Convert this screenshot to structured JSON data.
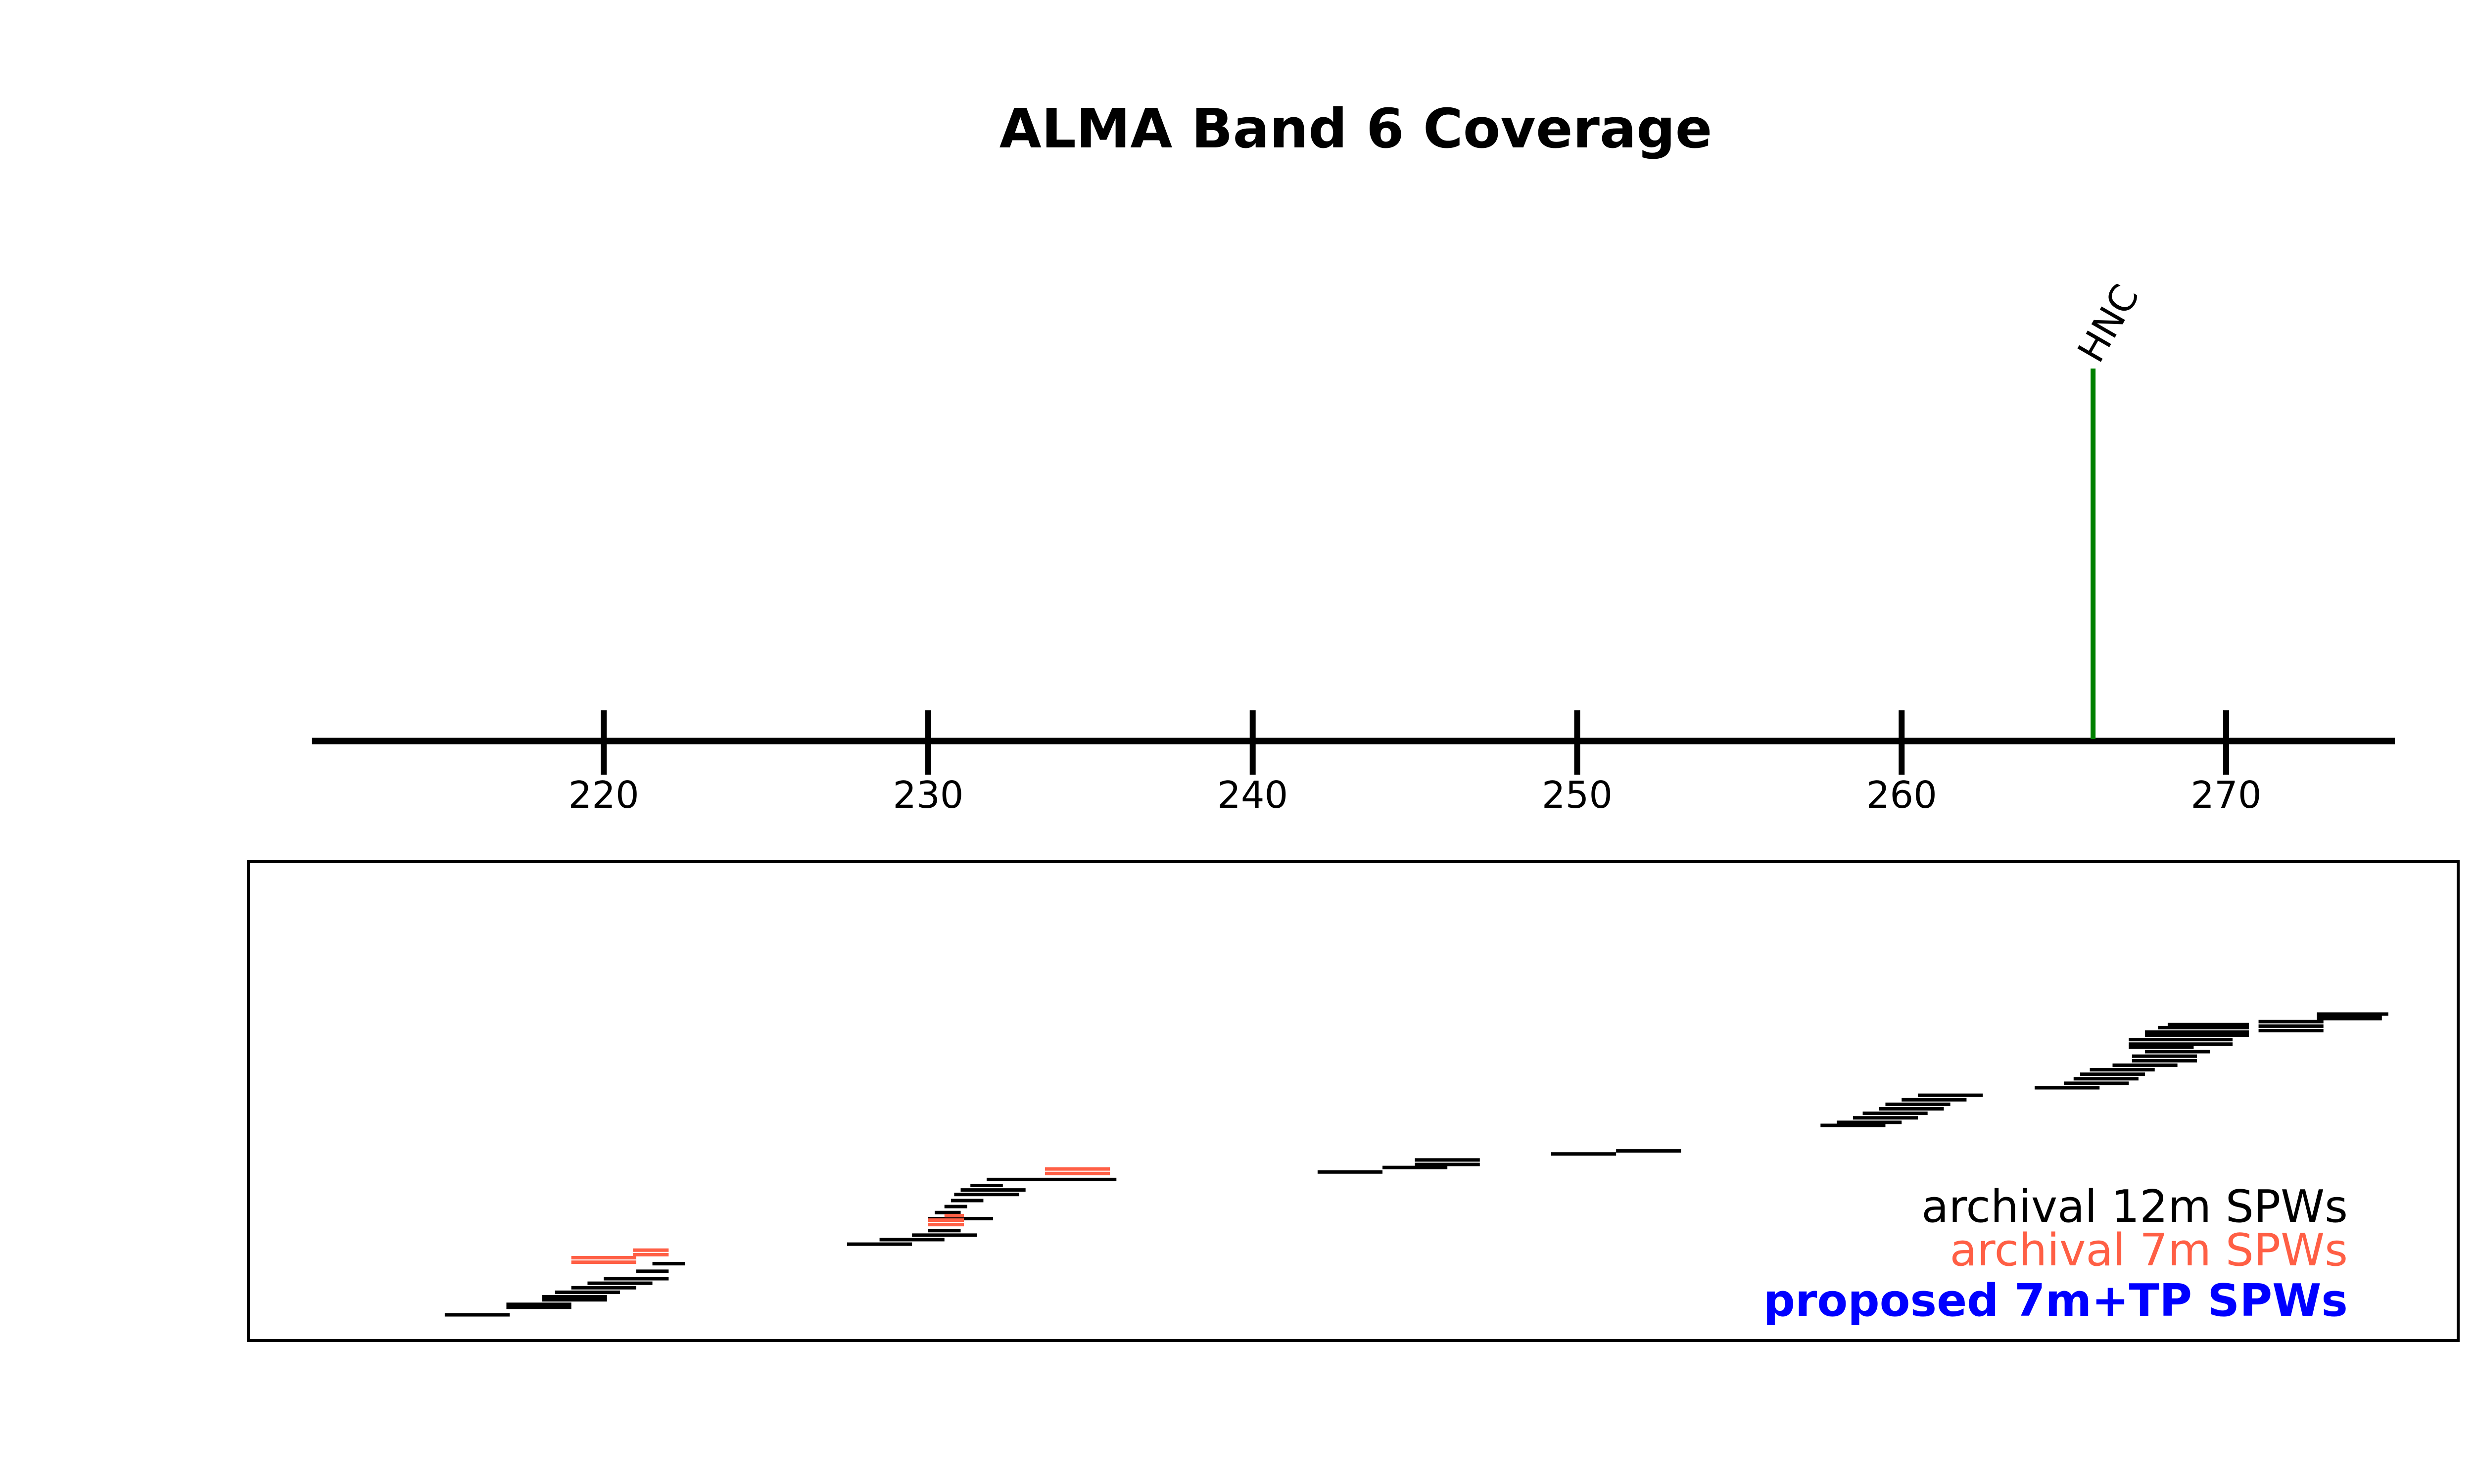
{
  "chart_data": {
    "type": "bar",
    "title": "ALMA Band 6 Coverage",
    "xlabel": "",
    "ylabel": "",
    "x_ticks": [
      220,
      230,
      240,
      250,
      260,
      270
    ],
    "xlim": [
      211,
      275.2
    ],
    "lines": [
      {
        "label": "HNC",
        "freq": 265.9,
        "color": "#008000"
      }
    ],
    "legend": {
      "placement": "lower-right",
      "entries": [
        {
          "label": "archival 12m SPWs",
          "color": "#000000",
          "bold": false
        },
        {
          "label": "archival 7m SPWs",
          "color": "#ff5f45",
          "bold": false
        },
        {
          "label": "proposed 7m+TP SPWs",
          "color": "#0000ff",
          "bold": true
        }
      ]
    },
    "series": [
      {
        "name": "archival 12m SPWs",
        "color": "#000000",
        "spws": [
          [
            215.1,
            217.1,
            0.0
          ],
          [
            217.0,
            219.0,
            0.025
          ],
          [
            217.0,
            219.0,
            0.035
          ],
          [
            218.1,
            220.1,
            0.05
          ],
          [
            218.1,
            220.1,
            0.06
          ],
          [
            218.5,
            220.5,
            0.075
          ],
          [
            219.0,
            221.0,
            0.09
          ],
          [
            219.5,
            221.5,
            0.105
          ],
          [
            220.0,
            222.0,
            0.12
          ],
          [
            221.0,
            222.0,
            0.145
          ],
          [
            221.5,
            222.5,
            0.17
          ],
          [
            227.5,
            229.5,
            0.235
          ],
          [
            228.5,
            230.5,
            0.25
          ],
          [
            229.5,
            231.5,
            0.265
          ],
          [
            230.0,
            231.0,
            0.28
          ],
          [
            230.0,
            232.0,
            0.32
          ],
          [
            230.2,
            231.0,
            0.34
          ],
          [
            230.5,
            231.2,
            0.36
          ],
          [
            230.7,
            231.7,
            0.38
          ],
          [
            230.8,
            232.8,
            0.4
          ],
          [
            231.0,
            233.0,
            0.415
          ],
          [
            231.3,
            232.3,
            0.43
          ],
          [
            231.8,
            235.8,
            0.45
          ],
          [
            242.0,
            244.0,
            0.475
          ],
          [
            244.0,
            246.0,
            0.49
          ],
          [
            245.0,
            247.0,
            0.5
          ],
          [
            245.0,
            247.0,
            0.515
          ],
          [
            249.2,
            251.2,
            0.535
          ],
          [
            251.2,
            253.2,
            0.545
          ],
          [
            257.5,
            259.5,
            0.63
          ],
          [
            258.0,
            260.0,
            0.64
          ],
          [
            258.5,
            260.5,
            0.655
          ],
          [
            258.8,
            260.8,
            0.67
          ],
          [
            259.3,
            261.3,
            0.685
          ],
          [
            259.5,
            261.5,
            0.7
          ],
          [
            260.0,
            262.0,
            0.715
          ],
          [
            260.5,
            262.5,
            0.73
          ],
          [
            264.1,
            266.1,
            0.755
          ],
          [
            265.0,
            267.0,
            0.77
          ],
          [
            265.3,
            267.3,
            0.785
          ],
          [
            265.5,
            267.5,
            0.8
          ],
          [
            265.8,
            267.8,
            0.815
          ],
          [
            266.5,
            268.5,
            0.83
          ],
          [
            267.1,
            269.1,
            0.845
          ],
          [
            267.1,
            269.1,
            0.86
          ],
          [
            267.5,
            269.5,
            0.875
          ],
          [
            267.0,
            269.0,
            0.89
          ],
          [
            267.0,
            270.2,
            0.9
          ],
          [
            267.0,
            270.2,
            0.915
          ],
          [
            267.5,
            270.7,
            0.93
          ],
          [
            267.5,
            270.7,
            0.94
          ],
          [
            267.9,
            270.7,
            0.955
          ],
          [
            268.2,
            270.7,
            0.965
          ],
          [
            271.0,
            273.0,
            0.945
          ],
          [
            271.0,
            273.0,
            0.96
          ],
          [
            271.0,
            273.0,
            0.975
          ],
          [
            272.8,
            274.8,
            0.985
          ],
          [
            272.8,
            274.8,
            0.995
          ],
          [
            272.8,
            275.0,
            1.0
          ]
        ]
      },
      {
        "name": "archival 7m SPWs",
        "color": "#ff5f45",
        "spws": [
          [
            219.0,
            221.0,
            0.175
          ],
          [
            219.0,
            221.0,
            0.19
          ],
          [
            220.9,
            222.0,
            0.2
          ],
          [
            220.9,
            222.0,
            0.215
          ],
          [
            230.0,
            231.1,
            0.3
          ],
          [
            230.0,
            231.1,
            0.315
          ],
          [
            230.5,
            231.1,
            0.33
          ],
          [
            233.6,
            235.6,
            0.47
          ],
          [
            233.6,
            235.6,
            0.485
          ]
        ]
      },
      {
        "name": "proposed 7m+TP SPWs",
        "color": "#0000ff",
        "spws": []
      }
    ]
  }
}
